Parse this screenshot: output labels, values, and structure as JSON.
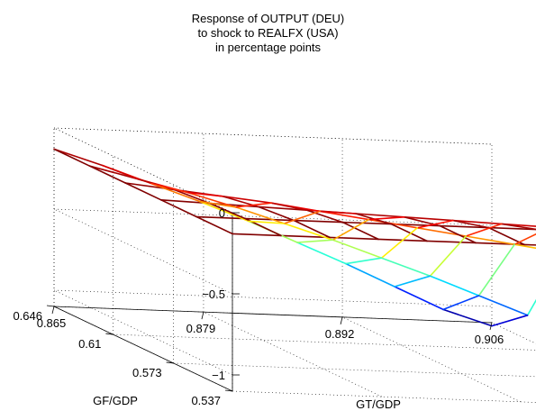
{
  "chart_data": {
    "type": "surface",
    "title": [
      "Response of OUTPUT (DEU)",
      "to shock to REALFX (USA)",
      "in percentage points"
    ],
    "xlabel": "GT/GDP",
    "ylabel": "GF/GDP",
    "zlabel": "",
    "x_ticks": [
      "0.865",
      "0.879",
      "0.892",
      "0.906"
    ],
    "y_ticks": [
      "0.537",
      "0.573",
      "0.61",
      "0.646"
    ],
    "z_ticks": [
      "0",
      "−0.5",
      "−1"
    ],
    "xlim": [
      0.865,
      0.906
    ],
    "ylim": [
      0.537,
      0.646
    ],
    "zlim": [
      -1.1,
      0
    ],
    "z_tick_values": [
      0,
      -0.5,
      -1
    ],
    "grid": true,
    "colormap": "jet",
    "z": [
      [
        -0.13,
        -0.13,
        -0.13,
        -0.13,
        -0.13,
        -0.13,
        -0.13,
        -0.13,
        -0.13,
        -0.13
      ],
      [
        -0.13,
        -0.13,
        -0.13,
        -0.13,
        -0.13,
        -0.13,
        -0.13,
        -0.13,
        -0.13,
        -0.13
      ],
      [
        -0.13,
        -0.14,
        -0.15,
        -0.16,
        -0.17,
        -0.18,
        -0.19,
        -0.2,
        -0.21,
        -0.22
      ],
      [
        -0.13,
        -0.16,
        -0.19,
        -0.22,
        -0.26,
        -0.3,
        -0.34,
        -0.38,
        -0.42,
        -0.46
      ],
      [
        -0.13,
        -0.2,
        -0.27,
        -0.35,
        -0.44,
        -0.53,
        -0.63,
        -0.73,
        -0.84,
        -0.95
      ],
      [
        -0.13,
        -0.22,
        -0.32,
        -0.42,
        -0.53,
        -0.65,
        -0.77,
        -0.9,
        -1.03,
        -1.12
      ]
    ]
  }
}
